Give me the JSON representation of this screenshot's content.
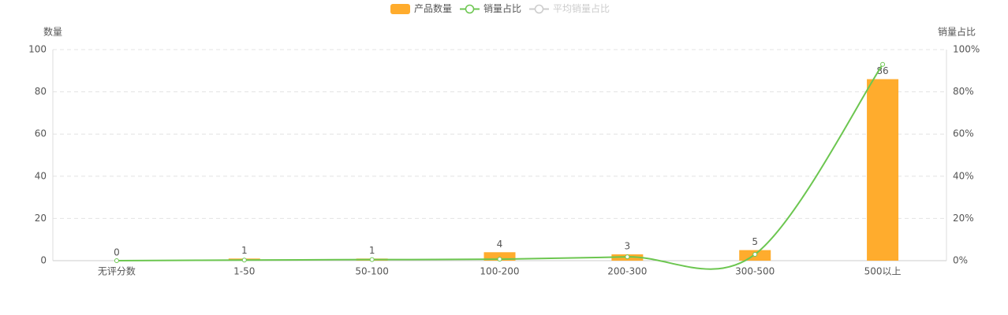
{
  "chart_data": {
    "type": "bar",
    "categories": [
      "无评分数",
      "1-50",
      "50-100",
      "100-200",
      "200-300",
      "300-500",
      "500以上"
    ],
    "series": [
      {
        "name": "产品数量",
        "type": "bar",
        "color": "#ffac2d",
        "values": [
          0,
          1,
          1,
          4,
          3,
          5,
          86
        ]
      },
      {
        "name": "销量占比",
        "type": "line",
        "axis": "y2",
        "color": "#6cc650",
        "values": [
          0,
          0.3,
          0.5,
          0.7,
          1.8,
          3,
          93
        ]
      },
      {
        "name": "平均销量占比",
        "type": "line",
        "axis": "y2",
        "color": "#cccccc",
        "inactive": true,
        "values": [
          null,
          null,
          null,
          null,
          null,
          null,
          null
        ]
      }
    ],
    "ylabel": "数量",
    "y2label": "销量占比",
    "ylim": [
      0,
      100
    ],
    "yticks": [
      0,
      20,
      40,
      60,
      80,
      100
    ],
    "y2lim": [
      0,
      100
    ],
    "y2ticks": [
      {
        "value": 0,
        "label": "0%"
      },
      {
        "value": 20,
        "label": "20%"
      },
      {
        "value": 40,
        "label": "40%"
      },
      {
        "value": 60,
        "label": "60%"
      },
      {
        "value": 80,
        "label": "80%"
      },
      {
        "value": 100,
        "label": "100%"
      }
    ],
    "grid": true,
    "legend": "top"
  }
}
